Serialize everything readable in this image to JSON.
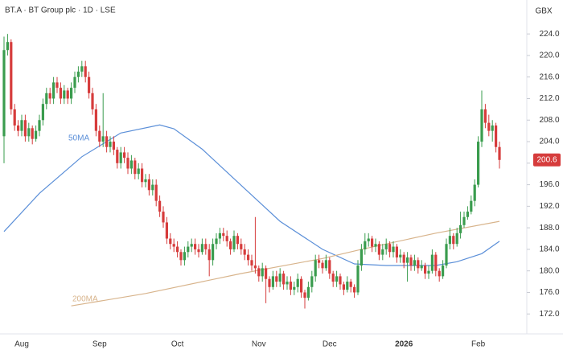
{
  "chart_data": {
    "type": "candlestick",
    "title": "BT.A · BT Group plc · 1D · LSE",
    "currency": "GBX",
    "up_color": "#3a9c4e",
    "down_color": "#d63c3c",
    "ylim": [
      168.3,
      230.3
    ],
    "yticks": [
      {
        "value": 172,
        "label": "172.0"
      },
      {
        "value": 176,
        "label": "176.0"
      },
      {
        "value": 180,
        "label": "180.0"
      },
      {
        "value": 184,
        "label": "184.0"
      },
      {
        "value": 188,
        "label": "188.0"
      },
      {
        "value": 192,
        "label": "192.0"
      },
      {
        "value": 196,
        "label": "196.0"
      },
      {
        "value": 200,
        "label": "200.0"
      },
      {
        "value": 204,
        "label": "204.0"
      },
      {
        "value": 208,
        "label": "208.0"
      },
      {
        "value": 212,
        "label": "212.0"
      },
      {
        "value": 216,
        "label": "216.0"
      },
      {
        "value": 220,
        "label": "220.0"
      },
      {
        "value": 224,
        "label": "224.0"
      }
    ],
    "categories": [
      null,
      null,
      null,
      null,
      null,
      "Aug",
      null,
      null,
      null,
      null,
      null,
      null,
      null,
      null,
      null,
      null,
      null,
      null,
      null,
      null,
      null,
      null,
      null,
      null,
      null,
      null,
      null,
      "Sep",
      null,
      null,
      null,
      null,
      null,
      null,
      null,
      null,
      null,
      null,
      null,
      null,
      null,
      null,
      null,
      null,
      null,
      null,
      null,
      null,
      null,
      "Oct",
      null,
      null,
      null,
      null,
      null,
      null,
      null,
      null,
      null,
      null,
      null,
      null,
      null,
      null,
      null,
      null,
      null,
      null,
      null,
      null,
      null,
      null,
      "Nov",
      null,
      null,
      null,
      null,
      null,
      null,
      null,
      null,
      null,
      null,
      null,
      null,
      null,
      null,
      null,
      null,
      null,
      null,
      null,
      "Dec",
      null,
      null,
      null,
      null,
      null,
      null,
      null,
      null,
      null,
      null,
      null,
      null,
      null,
      null,
      null,
      null,
      null,
      null,
      null,
      null,
      "2026",
      null,
      null,
      null,
      null,
      null,
      null,
      null,
      null,
      null,
      null,
      null,
      null,
      null,
      null,
      null,
      null,
      null,
      null,
      null,
      null,
      "Feb",
      null,
      null,
      null,
      null,
      null,
      null
    ],
    "ohlc": [
      [
        205,
        223.5,
        200,
        221
      ],
      [
        221,
        224,
        220,
        222.5
      ],
      [
        222.5,
        223,
        209,
        210
      ],
      [
        210,
        211,
        206,
        207
      ],
      [
        207,
        208,
        205,
        206
      ],
      [
        206,
        209,
        205,
        208
      ],
      [
        208,
        209,
        204,
        205
      ],
      [
        205,
        207.5,
        204,
        206.5
      ],
      [
        206.5,
        207,
        203.5,
        204.5
      ],
      [
        204.5,
        207,
        204,
        206
      ],
      [
        206,
        209,
        205,
        208
      ],
      [
        208,
        212,
        207,
        211
      ],
      [
        211,
        214,
        210,
        213
      ],
      [
        213,
        214,
        211,
        212
      ],
      [
        212,
        216,
        211,
        215
      ],
      [
        215,
        216,
        213,
        214
      ],
      [
        214,
        215,
        211,
        212
      ],
      [
        212,
        214.5,
        211,
        213.5
      ],
      [
        213.5,
        214,
        211,
        212
      ],
      [
        212,
        215,
        211,
        214
      ],
      [
        214,
        217,
        213,
        216
      ],
      [
        216,
        218,
        215,
        217
      ],
      [
        217,
        219,
        216,
        218
      ],
      [
        218,
        219,
        215,
        216
      ],
      [
        216,
        217,
        212,
        213
      ],
      [
        213,
        214,
        209,
        210
      ],
      [
        210,
        211,
        205,
        206
      ],
      [
        206,
        207,
        203,
        204
      ],
      [
        204,
        213,
        203,
        205
      ],
      [
        205,
        206,
        202,
        203
      ],
      [
        203,
        205,
        202,
        204
      ],
      [
        204,
        205,
        201.5,
        202.5
      ],
      [
        202.5,
        203,
        199,
        200
      ],
      [
        200,
        203,
        199,
        202
      ],
      [
        202,
        203,
        200,
        201
      ],
      [
        201,
        202,
        198,
        199
      ],
      [
        199,
        201.5,
        198,
        200.5
      ],
      [
        200.5,
        201,
        197,
        198
      ],
      [
        198,
        200,
        197,
        199
      ],
      [
        199,
        200,
        195.5,
        196.5
      ],
      [
        196.5,
        198,
        195.5,
        197
      ],
      [
        197,
        198,
        194,
        195
      ],
      [
        195,
        197,
        194,
        196
      ],
      [
        196,
        197,
        192,
        193
      ],
      [
        193,
        194,
        190,
        191
      ],
      [
        191,
        192,
        188,
        189
      ],
      [
        189,
        190,
        185,
        186
      ],
      [
        186,
        187,
        184,
        185
      ],
      [
        185,
        186,
        183.5,
        184.5
      ],
      [
        184.5,
        185.5,
        182.5,
        183.5
      ],
      [
        183.5,
        184,
        181,
        182
      ],
      [
        182,
        184.5,
        181,
        183.5
      ],
      [
        183.5,
        185.5,
        182.5,
        184.5
      ],
      [
        184.5,
        186,
        183.5,
        185
      ],
      [
        185,
        186,
        183,
        184
      ],
      [
        184,
        185,
        182.5,
        183.5
      ],
      [
        183.5,
        186,
        183,
        185
      ],
      [
        185,
        186,
        183,
        184
      ],
      [
        184,
        185,
        179,
        182
      ],
      [
        182,
        186,
        181,
        185
      ],
      [
        185,
        187,
        184,
        186
      ],
      [
        186,
        188,
        185,
        187
      ],
      [
        187,
        188,
        185.5,
        186.5
      ],
      [
        186.5,
        187.5,
        184.5,
        185.5
      ],
      [
        185.5,
        186,
        183,
        184
      ],
      [
        184,
        187.5,
        183.5,
        186.5
      ],
      [
        186.5,
        187,
        184,
        185
      ],
      [
        185,
        186,
        183,
        184
      ],
      [
        184,
        185,
        182,
        183
      ],
      [
        183,
        184,
        181,
        182
      ],
      [
        182,
        183,
        180,
        181
      ],
      [
        181,
        190,
        179.5,
        180.5
      ],
      [
        180.5,
        181,
        178,
        179
      ],
      [
        179,
        181.5,
        178,
        180.5
      ],
      [
        180.5,
        181,
        174,
        178.5
      ],
      [
        178.5,
        179,
        176,
        177
      ],
      [
        177,
        180,
        176.5,
        179
      ],
      [
        179,
        180,
        177,
        178
      ],
      [
        178,
        180.5,
        177,
        179.5
      ],
      [
        179.5,
        180,
        176.5,
        177.5
      ],
      [
        177.5,
        179,
        176.5,
        178
      ],
      [
        178,
        179,
        175.5,
        176.5
      ],
      [
        176.5,
        178,
        175.5,
        177
      ],
      [
        177,
        179.5,
        176,
        178.5
      ],
      [
        178.5,
        179,
        175,
        176
      ],
      [
        176,
        176.5,
        173,
        175
      ],
      [
        175,
        178,
        174.5,
        177
      ],
      [
        177,
        180,
        176,
        179
      ],
      [
        179,
        183,
        178,
        182
      ],
      [
        182,
        183,
        180.5,
        181.5
      ],
      [
        181.5,
        182,
        179.5,
        180.5
      ],
      [
        180.5,
        183,
        180,
        182
      ],
      [
        182,
        182.5,
        178.5,
        179.5
      ],
      [
        179.5,
        180,
        177,
        178
      ],
      [
        178,
        180,
        177,
        179
      ],
      [
        179,
        179.5,
        176.5,
        177.5
      ],
      [
        177.5,
        178,
        175.5,
        176.5
      ],
      [
        176.5,
        179,
        176,
        178
      ],
      [
        178,
        178.5,
        176,
        177
      ],
      [
        177,
        177.5,
        175,
        176
      ],
      [
        176,
        182,
        175.5,
        181
      ],
      [
        181,
        185,
        180,
        184
      ],
      [
        184,
        187,
        183,
        185.5
      ],
      [
        185.5,
        187,
        184.5,
        186
      ],
      [
        186,
        186.5,
        183.5,
        184.5
      ],
      [
        184.5,
        186,
        183.5,
        185
      ],
      [
        185,
        185.5,
        182,
        183
      ],
      [
        183,
        185,
        182,
        184
      ],
      [
        184,
        186,
        183,
        185
      ],
      [
        185,
        185.5,
        182.5,
        183.5
      ],
      [
        183.5,
        185.5,
        182.5,
        184.5
      ],
      [
        184.5,
        185,
        181.5,
        182.5
      ],
      [
        182.5,
        184,
        181.5,
        183
      ],
      [
        183,
        183.5,
        180.5,
        181.5
      ],
      [
        181.5,
        183.5,
        178,
        182.5
      ],
      [
        182.5,
        183,
        180,
        181
      ],
      [
        181,
        183,
        180,
        182
      ],
      [
        182,
        182.5,
        179.5,
        180.5
      ],
      [
        180.5,
        182,
        180,
        181
      ],
      [
        181,
        181.5,
        178.5,
        179.5
      ],
      [
        179.5,
        181,
        178.5,
        180
      ],
      [
        180,
        184,
        179.5,
        183
      ],
      [
        183,
        183.5,
        179,
        180
      ],
      [
        180,
        180.5,
        178,
        179
      ],
      [
        179,
        182,
        178.5,
        181
      ],
      [
        181,
        186,
        180.5,
        185
      ],
      [
        185,
        188,
        184,
        186.5
      ],
      [
        186.5,
        187,
        184,
        185
      ],
      [
        185,
        188,
        184.5,
        187
      ],
      [
        187,
        191,
        186,
        188.5
      ],
      [
        188.5,
        191,
        188,
        190
      ],
      [
        190,
        192,
        189.5,
        191
      ],
      [
        191,
        194,
        190.5,
        193
      ],
      [
        193,
        197,
        192,
        196
      ],
      [
        196,
        205,
        195.5,
        204
      ],
      [
        204,
        213.5,
        203,
        210
      ],
      [
        210,
        211,
        206.5,
        207.5
      ],
      [
        207.5,
        209,
        205,
        206
      ],
      [
        206,
        208,
        204,
        207
      ],
      [
        207,
        207.5,
        202,
        203
      ],
      [
        203,
        204,
        199,
        200.6
      ]
    ],
    "ma_series": [
      {
        "name": "50MA",
        "color": "#5b8fd8",
        "x": [
          0,
          10,
          22,
          33,
          44,
          48,
          56,
          67,
          78,
          90,
          99,
          108,
          122,
          128,
          135,
          140
        ],
        "values": [
          187.3,
          194.4,
          201.2,
          205.6,
          207.1,
          206.4,
          202.6,
          195.9,
          189.2,
          184,
          181.3,
          181,
          181,
          181.7,
          183.2,
          185.5
        ]
      },
      {
        "name": "200MA",
        "color": "#d8b48c",
        "x": [
          19,
          40,
          67,
          90,
          101,
          122,
          140
        ],
        "values": [
          173.5,
          175.8,
          179.5,
          182.3,
          184,
          187,
          189.2
        ]
      }
    ]
  }
}
